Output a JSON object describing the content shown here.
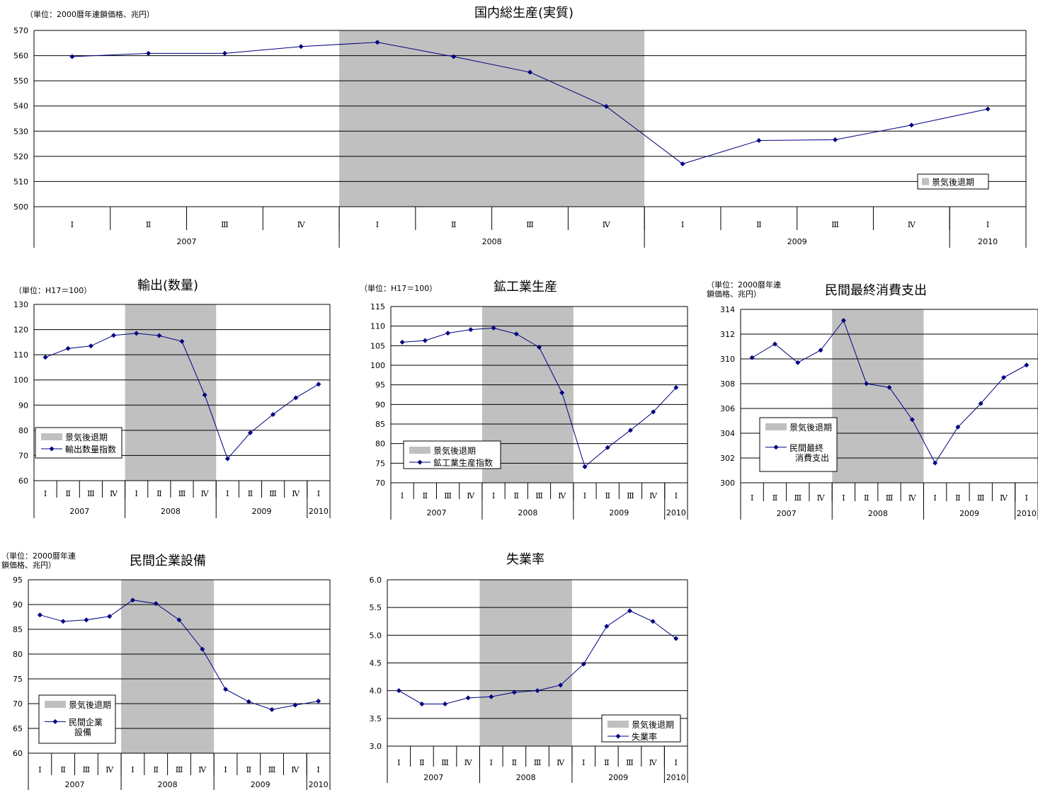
{
  "legend_recession": "景気後退期",
  "quarters": [
    "Ⅰ",
    "Ⅱ",
    "Ⅲ",
    "Ⅳ",
    "Ⅰ",
    "Ⅱ",
    "Ⅲ",
    "Ⅳ",
    "Ⅰ",
    "Ⅱ",
    "Ⅲ",
    "Ⅳ",
    "Ⅰ"
  ],
  "years": [
    {
      "label": "2007",
      "count": 4
    },
    {
      "label": "2008",
      "count": 4
    },
    {
      "label": "2009",
      "count": 4
    },
    {
      "label": "2010",
      "count": 1
    }
  ],
  "colors": {
    "line": "#000080",
    "marker": "#000080",
    "recession": "#c0c0c0",
    "grid": "#000000"
  },
  "chart_data": [
    {
      "type": "line",
      "title": "国内総生産(実質)",
      "unit_lines": [
        "（単位：2000暦年連鎖価格、兆円）"
      ],
      "ylim": [
        500,
        570
      ],
      "ystep": 10,
      "ydecimals": 0,
      "recession": [
        4,
        8
      ],
      "series": [
        {
          "values": [
            559.6,
            560.9,
            560.9,
            563.6,
            565.3,
            559.6,
            553.4,
            539.8,
            517.0,
            526.3,
            526.6,
            532.4,
            538.8
          ]
        }
      ],
      "legend": {
        "type": "recession-only",
        "position": "bottom-right"
      }
    },
    {
      "type": "line",
      "title": "輸出(数量)",
      "unit_lines": [
        "（単位：H17＝100）"
      ],
      "ylim": [
        60,
        130
      ],
      "ystep": 10,
      "ydecimals": 0,
      "recession": [
        4,
        8
      ],
      "series": [
        {
          "name": "輸出数量指数",
          "values": [
            109.0,
            112.5,
            113.5,
            117.7,
            118.5,
            117.6,
            115.3,
            94.0,
            68.7,
            79.0,
            86.3,
            92.9,
            98.3
          ]
        }
      ],
      "legend": {
        "position": "bottom-left",
        "series_lines": [
          "輸出数量指数"
        ]
      }
    },
    {
      "type": "line",
      "title": "鉱工業生産",
      "unit_lines": [
        "（単位：H17＝100）"
      ],
      "ylim": [
        70,
        115
      ],
      "ystep": 5,
      "ydecimals": 0,
      "recession": [
        4,
        8
      ],
      "series": [
        {
          "name": "鉱工業生産指数",
          "values": [
            105.9,
            106.3,
            108.2,
            109.1,
            109.5,
            108.0,
            104.6,
            93.0,
            74.1,
            79.0,
            83.4,
            88.1,
            94.3
          ]
        }
      ],
      "legend": {
        "position": "bottom-left",
        "series_lines": [
          "鉱工業生産指数"
        ]
      }
    },
    {
      "type": "line",
      "title": "民間最終消費支出",
      "unit_lines": [
        "（単位：2000暦年連",
        "鎖価格、兆円）"
      ],
      "ylim": [
        300,
        314
      ],
      "ystep": 2,
      "ydecimals": 0,
      "recession": [
        4,
        8
      ],
      "series": [
        {
          "name": "民間最終消費支出",
          "values": [
            310.1,
            311.2,
            309.7,
            310.7,
            313.1,
            308.0,
            307.7,
            305.1,
            301.6,
            304.5,
            306.4,
            308.5,
            309.5
          ]
        }
      ],
      "legend": {
        "position": "bottom-left",
        "series_lines": [
          "民間最終",
          "消費支出"
        ]
      }
    },
    {
      "type": "line",
      "title": "民間企業設備",
      "unit_lines": [
        "（単位：2000暦年連",
        "鎖価格、兆円）"
      ],
      "ylim": [
        60,
        95
      ],
      "ystep": 5,
      "ydecimals": 0,
      "recession": [
        4,
        8
      ],
      "series": [
        {
          "name": "民間企業設備",
          "values": [
            87.9,
            86.6,
            86.9,
            87.6,
            90.9,
            90.2,
            86.9,
            81.0,
            72.9,
            70.4,
            68.8,
            69.7,
            70.5
          ]
        }
      ],
      "legend": {
        "position": "bottom-left",
        "series_lines": [
          "民間企業",
          "設備"
        ]
      }
    },
    {
      "type": "line",
      "title": "失業率",
      "unit_lines": [],
      "ylim": [
        3.0,
        6.0
      ],
      "ystep": 0.5,
      "ydecimals": 1,
      "recession": [
        4,
        8
      ],
      "series": [
        {
          "name": "失業率",
          "values": [
            4.0,
            3.76,
            3.76,
            3.87,
            3.89,
            3.97,
            4.0,
            4.1,
            4.48,
            5.16,
            5.44,
            5.25,
            4.94
          ]
        }
      ],
      "legend": {
        "position": "bottom-right",
        "series_lines": [
          "失業率"
        ]
      }
    }
  ]
}
